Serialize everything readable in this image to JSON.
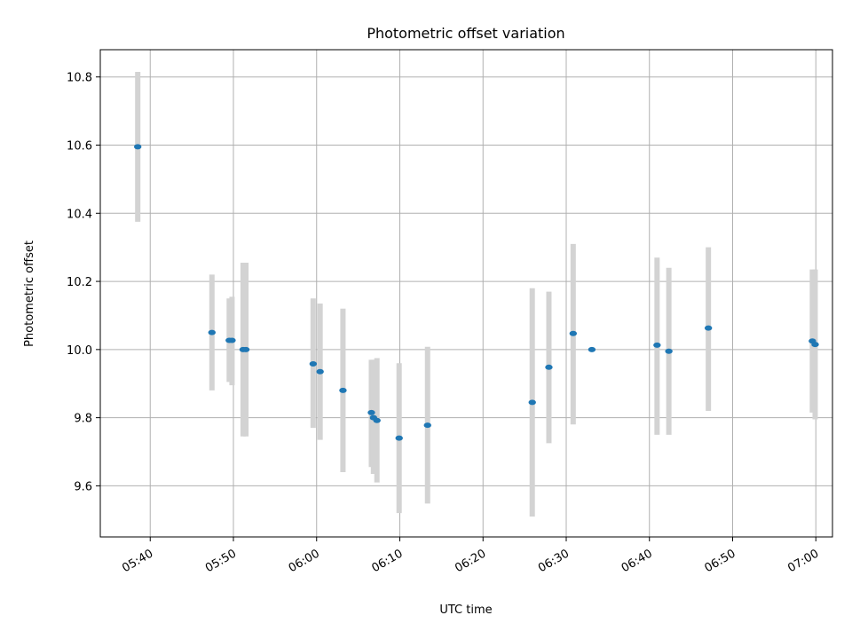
{
  "chart_data": {
    "type": "scatter",
    "title": "Photometric offset variation",
    "xlabel": "UTC time",
    "ylabel": "Photometric offset",
    "ylim": [
      9.45,
      10.88
    ],
    "xlim": [
      "05:34",
      "07:02"
    ],
    "xticks": [
      "05:40",
      "05:50",
      "06:00",
      "06:10",
      "06:20",
      "06:30",
      "06:40",
      "06:50",
      "07:00"
    ],
    "yticks": [
      "9.6",
      "9.8",
      "10.0",
      "10.2",
      "10.4",
      "10.6",
      "10.8"
    ],
    "grid": true,
    "marker_color": "#1f77b4",
    "errorbar_color": "#d3d3d3",
    "series": [
      {
        "points": [
          {
            "x": "05:38:30",
            "y": 10.595,
            "lo": 10.375,
            "hi": 10.815
          },
          {
            "x": "05:47:25",
            "y": 10.05,
            "lo": 9.88,
            "hi": 10.22
          },
          {
            "x": "05:49:30",
            "y": 10.027,
            "lo": 9.905,
            "hi": 10.15
          },
          {
            "x": "05:49:50",
            "y": 10.027,
            "lo": 9.895,
            "hi": 10.155
          },
          {
            "x": "05:51:10",
            "y": 10.0,
            "lo": 9.745,
            "hi": 10.255
          },
          {
            "x": "05:51:30",
            "y": 10.0,
            "lo": 9.745,
            "hi": 10.255
          },
          {
            "x": "05:59:35",
            "y": 9.958,
            "lo": 9.77,
            "hi": 10.15
          },
          {
            "x": "06:00:25",
            "y": 9.935,
            "lo": 9.735,
            "hi": 10.135
          },
          {
            "x": "06:03:10",
            "y": 9.88,
            "lo": 9.64,
            "hi": 10.12
          },
          {
            "x": "06:06:35",
            "y": 9.815,
            "lo": 9.655,
            "hi": 9.97
          },
          {
            "x": "06:06:50",
            "y": 9.8,
            "lo": 9.635,
            "hi": 9.97
          },
          {
            "x": "06:07:15",
            "y": 9.792,
            "lo": 9.61,
            "hi": 9.975
          },
          {
            "x": "06:09:55",
            "y": 9.74,
            "lo": 9.52,
            "hi": 9.96
          },
          {
            "x": "06:13:20",
            "y": 9.778,
            "lo": 9.548,
            "hi": 10.008
          },
          {
            "x": "06:25:55",
            "y": 9.845,
            "lo": 9.51,
            "hi": 10.18
          },
          {
            "x": "06:27:55",
            "y": 9.948,
            "lo": 9.725,
            "hi": 10.17
          },
          {
            "x": "06:30:50",
            "y": 10.047,
            "lo": 9.78,
            "hi": 10.31
          },
          {
            "x": "06:33:05",
            "y": 10.0,
            "lo": 10.0,
            "hi": 10.0
          },
          {
            "x": "06:40:55",
            "y": 10.013,
            "lo": 9.75,
            "hi": 10.27
          },
          {
            "x": "06:42:20",
            "y": 9.995,
            "lo": 9.75,
            "hi": 10.24
          },
          {
            "x": "06:47:05",
            "y": 10.063,
            "lo": 9.82,
            "hi": 10.3
          },
          {
            "x": "06:59:35",
            "y": 10.025,
            "lo": 9.815,
            "hi": 10.235
          },
          {
            "x": "06:59:55",
            "y": 10.015,
            "lo": 9.795,
            "hi": 10.235
          }
        ]
      }
    ]
  }
}
